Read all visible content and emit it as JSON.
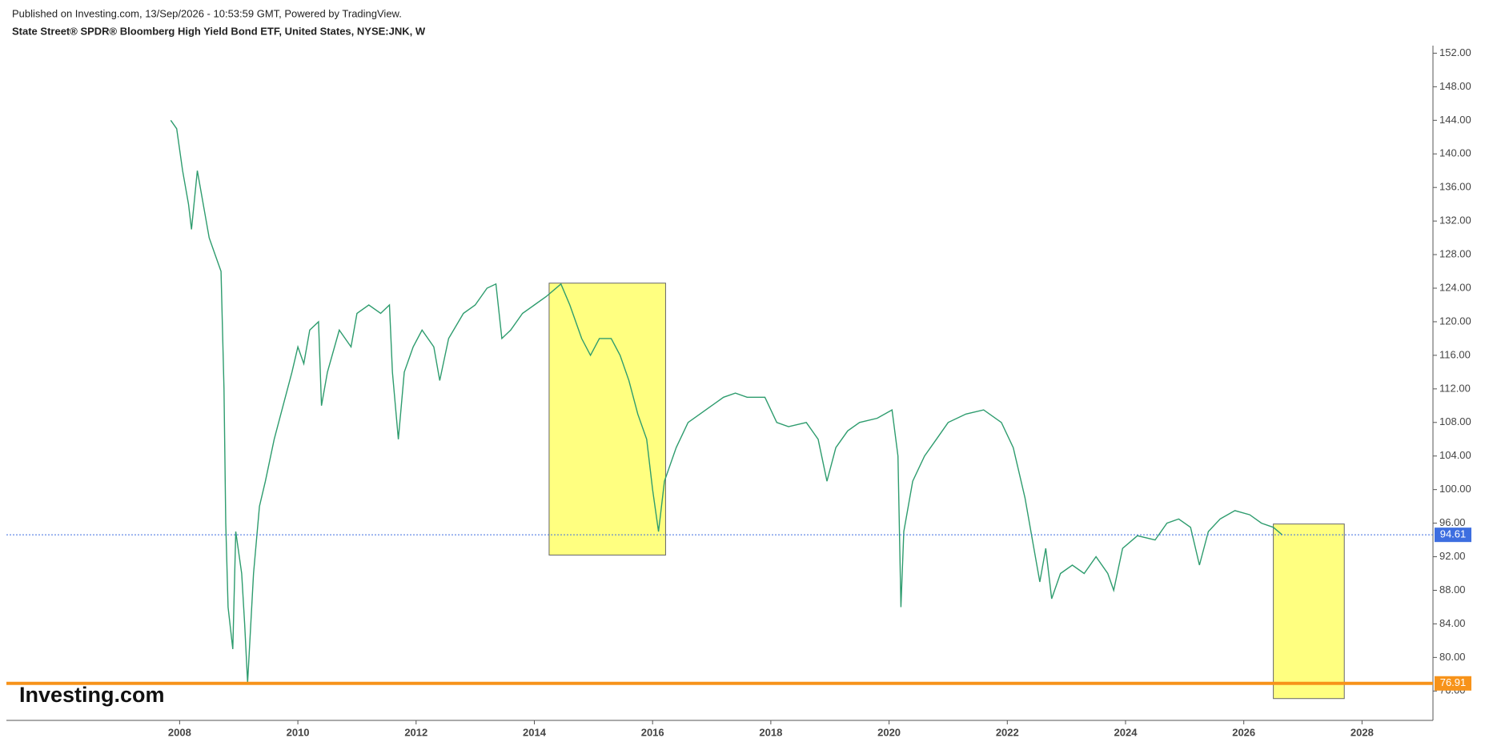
{
  "header": {
    "published": "Published on Investing.com, 13/Sep/2026 - 10:53:59 GMT, Powered by TradingView.",
    "watermark": "Investing.com"
  },
  "chart_data": {
    "type": "line",
    "title": "State Street® SPDR® Bloomberg High Yield Bond ETF, United States, NYSE:JNK, W",
    "series": [
      {
        "color": "#2e9c6e",
        "x": [
          2007.85,
          2007.95,
          2008.05,
          2008.15,
          2008.2,
          2008.3,
          2008.4,
          2008.5,
          2008.6,
          2008.7,
          2008.75,
          2008.78,
          2008.82,
          2008.9,
          2008.95,
          2009.05,
          2009.1,
          2009.15,
          2009.25,
          2009.35,
          2009.45,
          2009.6,
          2009.75,
          2009.9,
          2010.0,
          2010.1,
          2010.2,
          2010.35,
          2010.4,
          2010.5,
          2010.7,
          2010.9,
          2011.0,
          2011.2,
          2011.4,
          2011.55,
          2011.6,
          2011.7,
          2011.8,
          2011.95,
          2012.1,
          2012.3,
          2012.4,
          2012.55,
          2012.8,
          2013.0,
          2013.2,
          2013.35,
          2013.45,
          2013.6,
          2013.8,
          2014.0,
          2014.2,
          2014.45,
          2014.6,
          2014.8,
          2014.95,
          2015.1,
          2015.3,
          2015.45,
          2015.6,
          2015.75,
          2015.9,
          2016.0,
          2016.1,
          2016.2,
          2016.4,
          2016.6,
          2016.8,
          2017.0,
          2017.2,
          2017.4,
          2017.6,
          2017.9,
          2018.1,
          2018.3,
          2018.6,
          2018.8,
          2018.95,
          2019.1,
          2019.3,
          2019.5,
          2019.8,
          2020.05,
          2020.15,
          2020.2,
          2020.25,
          2020.4,
          2020.6,
          2020.8,
          2021.0,
          2021.3,
          2021.6,
          2021.9,
          2022.1,
          2022.3,
          2022.45,
          2022.55,
          2022.65,
          2022.75,
          2022.9,
          2023.1,
          2023.3,
          2023.5,
          2023.7,
          2023.8,
          2023.95,
          2024.2,
          2024.5,
          2024.7,
          2024.9,
          2025.1,
          2025.25,
          2025.4,
          2025.6,
          2025.85,
          2026.1,
          2026.3,
          2026.5,
          2026.65
        ],
        "values": [
          144,
          143,
          138,
          134,
          131,
          138,
          134,
          130,
          128,
          126,
          112,
          96,
          86,
          81,
          95,
          90,
          84,
          77,
          90,
          98,
          101,
          106,
          110,
          114,
          117,
          115,
          119,
          120,
          110,
          114,
          119,
          117,
          121,
          122,
          121,
          122,
          114,
          106,
          114,
          117,
          119,
          117,
          113,
          118,
          121,
          122,
          124,
          124.5,
          118,
          119,
          121,
          122,
          123,
          124.5,
          122,
          118,
          116,
          118,
          118,
          116,
          113,
          109,
          106,
          100,
          95,
          101,
          105,
          108,
          109,
          110,
          111,
          111.5,
          111,
          111,
          108,
          107.5,
          108,
          106,
          101,
          105,
          107,
          108,
          108.5,
          109.5,
          104,
          86,
          95,
          101,
          104,
          106,
          108,
          109,
          109.5,
          108,
          105,
          99,
          93,
          89,
          93,
          87,
          90,
          91,
          90,
          92,
          90,
          88,
          93,
          94.5,
          94,
          96,
          96.5,
          95.5,
          91,
          95,
          96.5,
          97.5,
          97,
          96,
          95.5,
          94.61
        ]
      }
    ],
    "xlim": [
      2005.07,
      2029.2
    ],
    "xticks": [
      2008,
      2010,
      2012,
      2014,
      2016,
      2018,
      2020,
      2022,
      2024,
      2026,
      2028
    ],
    "ylim": [
      72.5,
      152.9
    ],
    "yticks": [
      {
        "value": 76,
        "label": "76.00"
      },
      {
        "value": 80,
        "label": "80.00"
      },
      {
        "value": 84,
        "label": "84.00"
      },
      {
        "value": 88,
        "label": "88.00"
      },
      {
        "value": 92,
        "label": "92.00"
      },
      {
        "value": 96,
        "label": "96.00"
      },
      {
        "value": 100,
        "label": "100.00"
      },
      {
        "value": 104,
        "label": "104.00"
      },
      {
        "value": 108,
        "label": "108.00"
      },
      {
        "value": 112,
        "label": "112.00"
      },
      {
        "value": 116,
        "label": "116.00"
      },
      {
        "value": 120,
        "label": "120.00"
      },
      {
        "value": 124,
        "label": "124.00"
      },
      {
        "value": 128,
        "label": "128.00"
      },
      {
        "value": 132,
        "label": "132.00"
      },
      {
        "value": 136,
        "label": "136.00"
      },
      {
        "value": 140,
        "label": "140.00"
      },
      {
        "value": 144,
        "label": "144.00"
      },
      {
        "value": 148,
        "label": "148.00"
      },
      {
        "value": 152,
        "label": "152.00"
      }
    ],
    "current_price": 94.61,
    "current_color": "#3d6ee0",
    "support": 76.91,
    "support_color": "#f7931a",
    "boxes": [
      {
        "x": [
          2014.25,
          2016.22
        ],
        "y": [
          92.2,
          124.6
        ],
        "color": "#ffff80"
      },
      {
        "x": [
          2026.5,
          2027.7
        ],
        "y": [
          75.1,
          95.9
        ],
        "color": "#ffff80"
      }
    ]
  }
}
